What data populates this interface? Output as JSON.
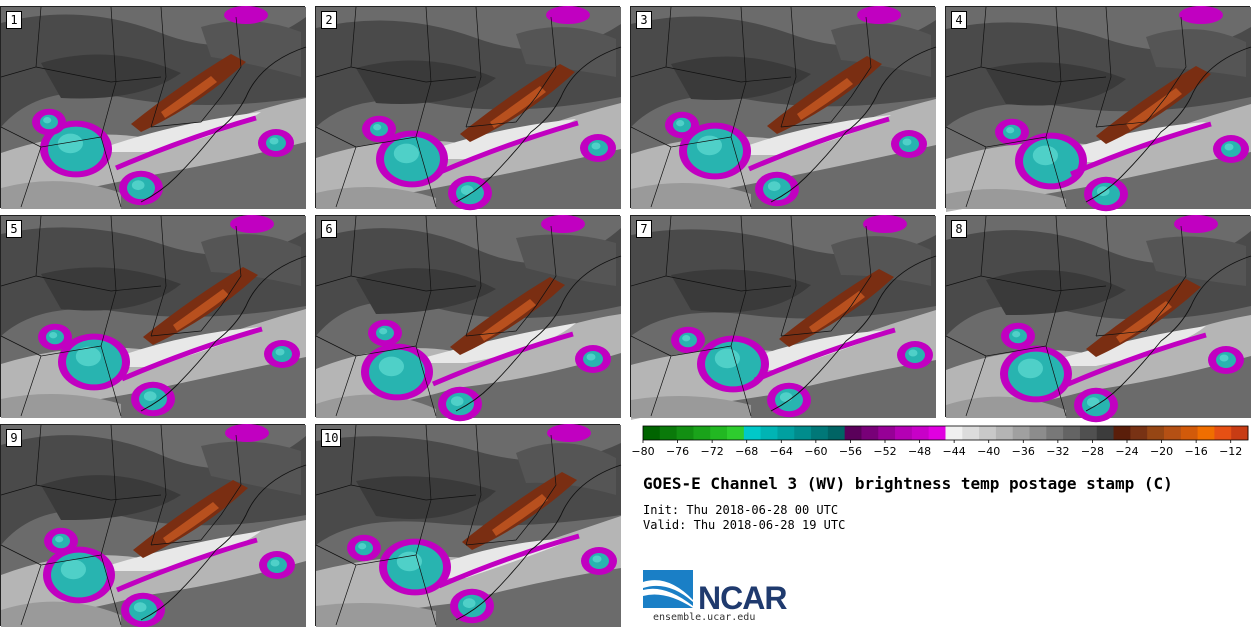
{
  "figure": {
    "title": "GOES-E Channel 3 (WV) brightness temp postage stamp (C)",
    "init_label": "Init:",
    "init_value": "Thu 2018-06-28 00 UTC",
    "valid_label": "Valid:",
    "valid_value": "Thu 2018-06-28 19 UTC",
    "logo_text": "NCAR",
    "logo_url": "ensemble.ucar.edu"
  },
  "chart_data": {
    "type": "heatmap",
    "title": "GOES-E Channel 3 (WV) brightness temp postage stamp (C)",
    "units": "C",
    "members": [
      "1",
      "2",
      "3",
      "4",
      "5",
      "6",
      "7",
      "8",
      "9",
      "10"
    ],
    "colorbar": {
      "range": [
        -80,
        -10
      ],
      "ticks": [
        -80,
        -76,
        -72,
        -68,
        -64,
        -60,
        -56,
        -52,
        -48,
        -44,
        -40,
        -36,
        -32,
        -28,
        -24,
        -20,
        -16,
        -12
      ],
      "colors": [
        "#006400",
        "#0a7a0a",
        "#128f12",
        "#1aa31a",
        "#22b822",
        "#2ecc2e",
        "#00c8c8",
        "#00b4b4",
        "#00a0a0",
        "#008c8c",
        "#007878",
        "#006464",
        "#5a005a",
        "#780078",
        "#960096",
        "#b400b4",
        "#c800c8",
        "#e000e0",
        "#f0f0f0",
        "#dcdcdc",
        "#c8c8c8",
        "#b4b4b4",
        "#a0a0a0",
        "#8c8c8c",
        "#787878",
        "#646464",
        "#505050",
        "#3c3c3c",
        "#5a1e0a",
        "#783214",
        "#964614",
        "#b45014",
        "#d25a0a",
        "#f06e00",
        "#e65014",
        "#c83c14"
      ]
    }
  }
}
